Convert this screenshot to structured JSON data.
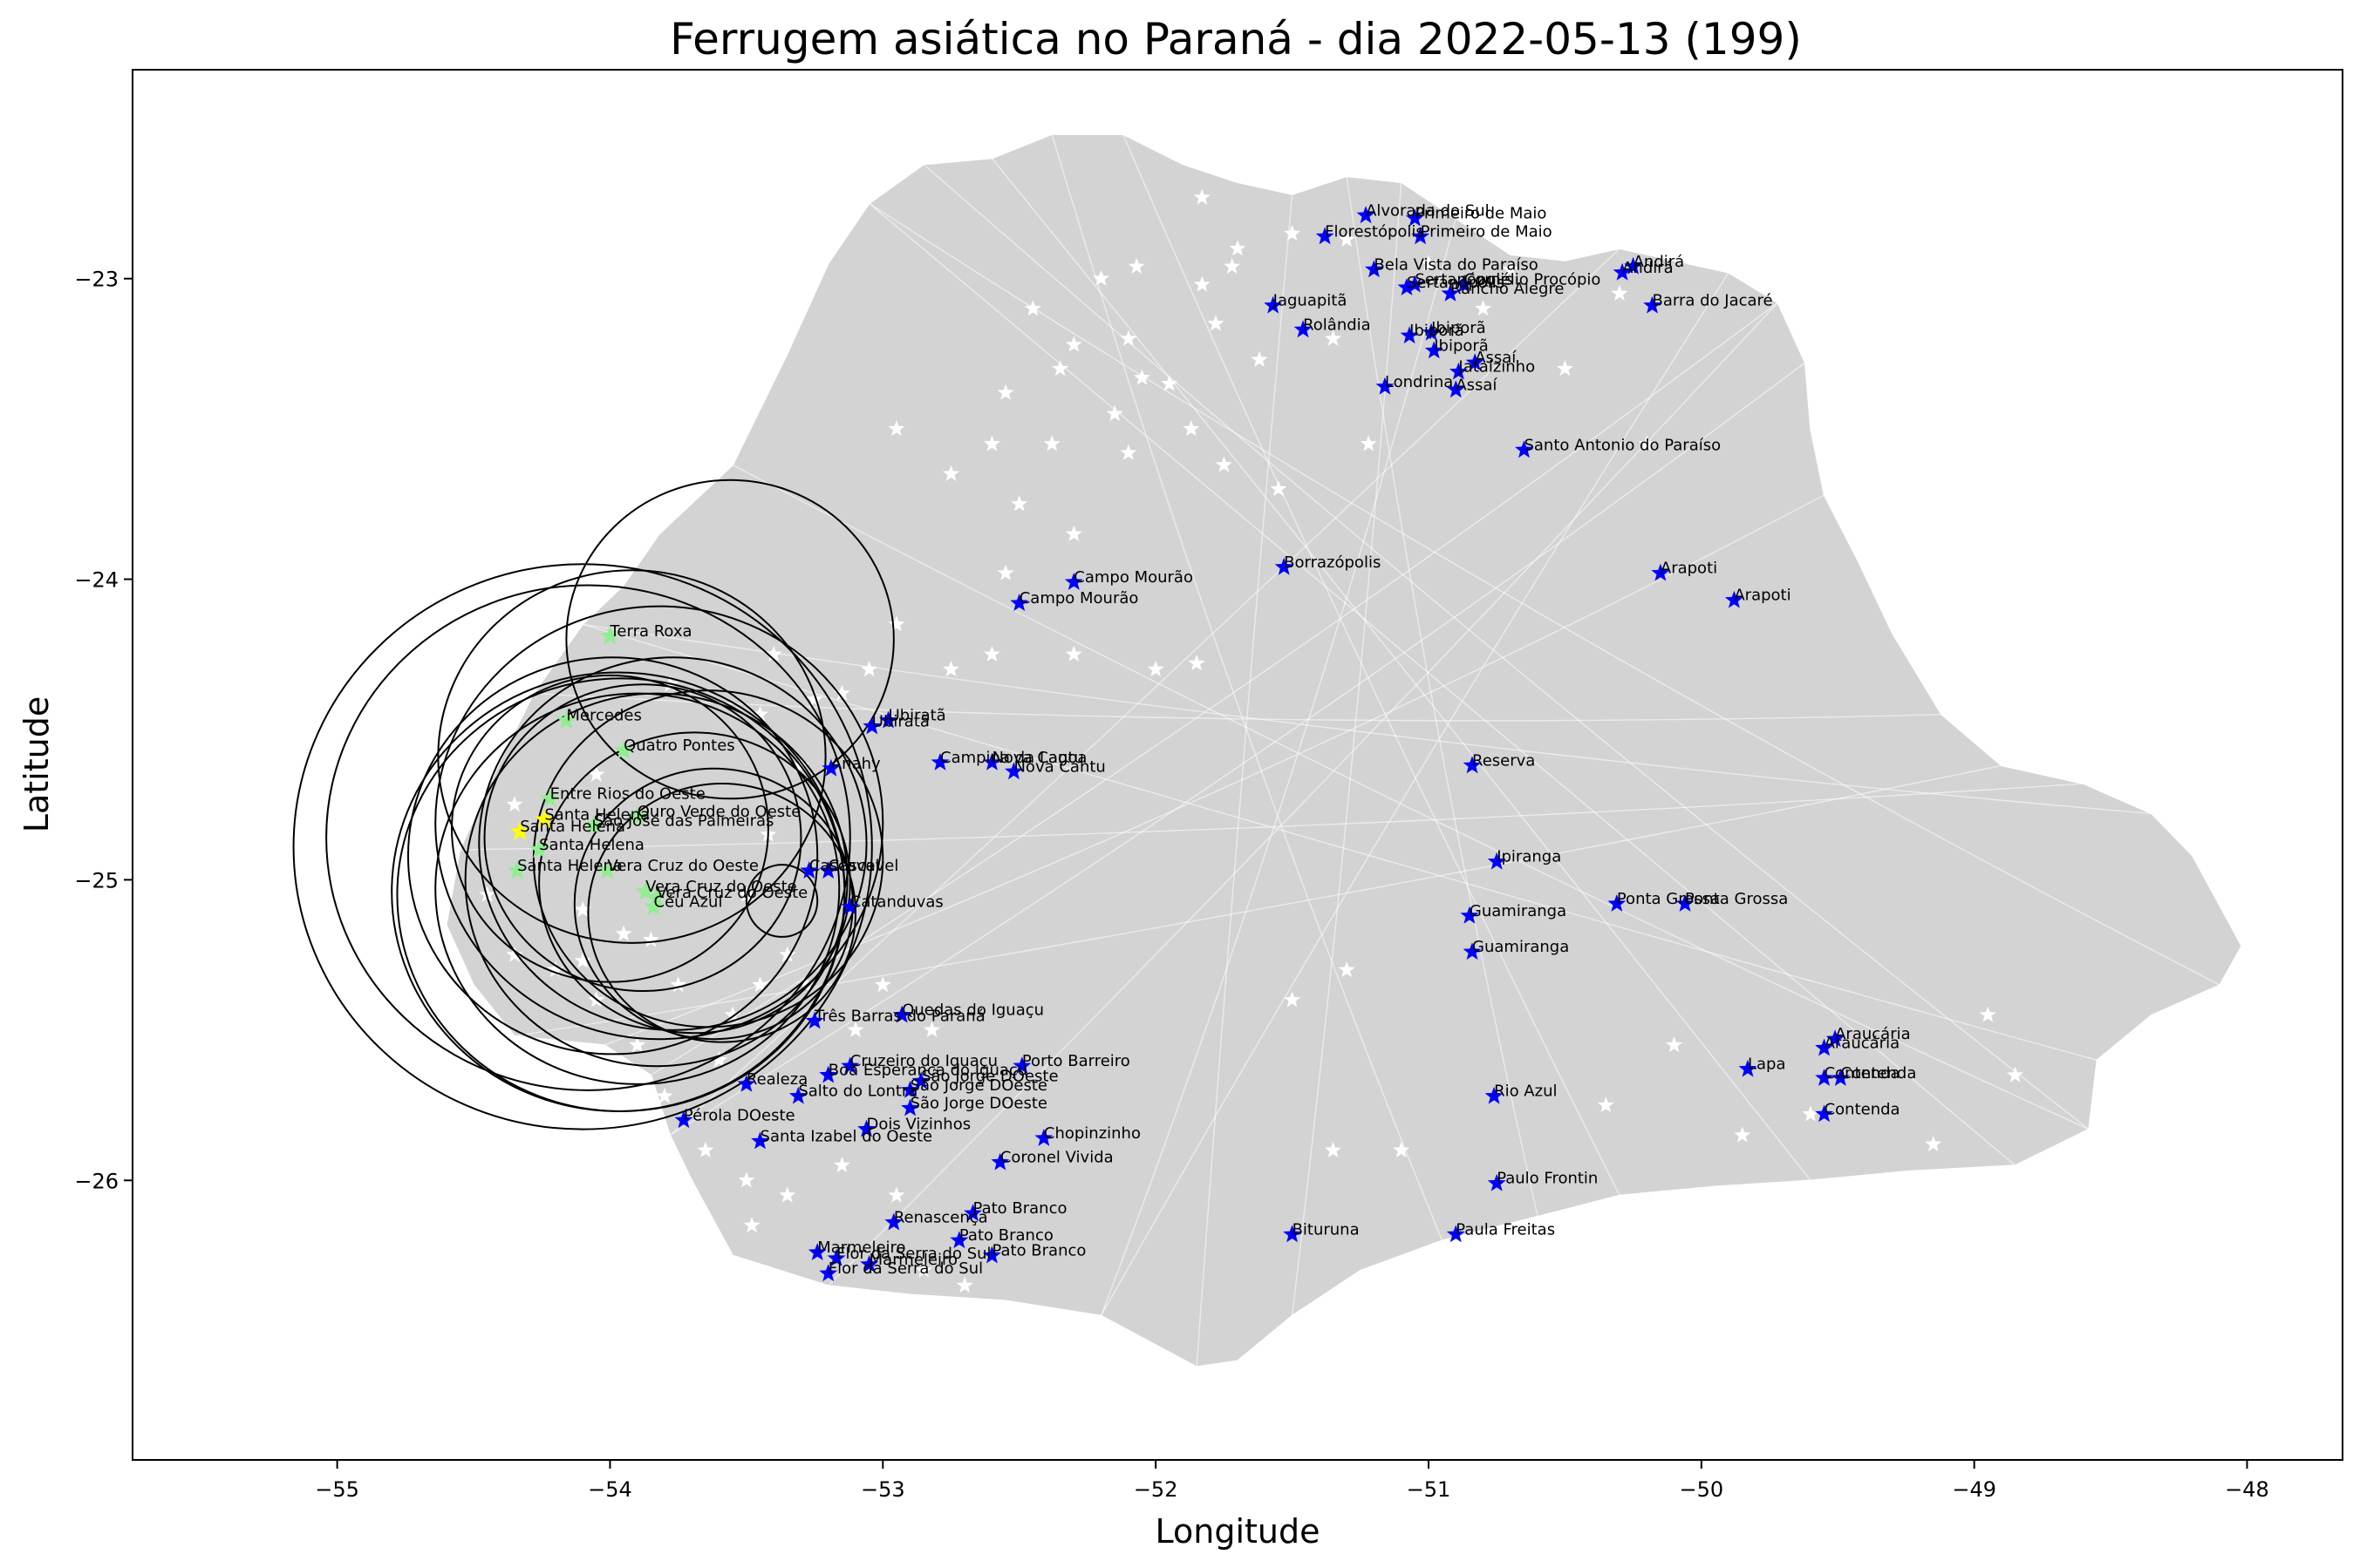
{
  "chart_data": {
    "type": "scatter",
    "title": "Ferrugem asiática no Paraná - dia 2022-05-13 (199)",
    "xlabel": "Longitude",
    "ylabel": "Latitude",
    "xlim": [
      -55.75,
      -47.65
    ],
    "ylim": [
      -26.93,
      -22.305
    ],
    "xticks": [
      -55,
      -54,
      -53,
      -52,
      -51,
      -50,
      -49,
      -48
    ],
    "xtick_labels": [
      "−55",
      "−54",
      "−53",
      "−52",
      "−51",
      "−50",
      "−49",
      "−48"
    ],
    "yticks": [
      -23,
      -24,
      -25,
      -26
    ],
    "ytick_labels": [
      "−23",
      "−24",
      "−25",
      "−26"
    ],
    "grid": false,
    "legend": "none",
    "colors": {
      "state_fill": "#d3d3d3",
      "boundaries": "#ffffff",
      "station_marker": "#0000ff",
      "infected_green": "#90ee90",
      "infected_yellow": "#ffff00",
      "circle_stroke": "#000000"
    },
    "state_outline": [
      [
        -52.12,
        -22.52
      ],
      [
        -51.9,
        -22.62
      ],
      [
        -51.7,
        -22.68
      ],
      [
        -51.5,
        -22.72
      ],
      [
        -51.3,
        -22.66
      ],
      [
        -51.1,
        -22.68
      ],
      [
        -50.9,
        -22.8
      ],
      [
        -50.7,
        -22.92
      ],
      [
        -50.5,
        -22.94
      ],
      [
        -50.3,
        -22.9
      ],
      [
        -50.1,
        -22.94
      ],
      [
        -49.9,
        -22.98
      ],
      [
        -49.72,
        -23.08
      ],
      [
        -49.62,
        -23.28
      ],
      [
        -49.6,
        -23.5
      ],
      [
        -49.55,
        -23.72
      ],
      [
        -49.42,
        -23.95
      ],
      [
        -49.3,
        -24.18
      ],
      [
        -49.12,
        -24.45
      ],
      [
        -48.9,
        -24.62
      ],
      [
        -48.6,
        -24.68
      ],
      [
        -48.35,
        -24.78
      ],
      [
        -48.2,
        -24.92
      ],
      [
        -48.02,
        -25.22
      ],
      [
        -48.1,
        -25.35
      ],
      [
        -48.35,
        -25.45
      ],
      [
        -48.55,
        -25.6
      ],
      [
        -48.58,
        -25.83
      ],
      [
        -48.85,
        -25.95
      ],
      [
        -49.25,
        -25.97
      ],
      [
        -49.6,
        -26.0
      ],
      [
        -49.95,
        -26.02
      ],
      [
        -50.3,
        -26.05
      ],
      [
        -50.6,
        -26.12
      ],
      [
        -50.95,
        -26.2
      ],
      [
        -51.25,
        -26.3
      ],
      [
        -51.5,
        -26.45
      ],
      [
        -51.7,
        -26.6
      ],
      [
        -51.85,
        -26.62
      ],
      [
        -52.2,
        -26.45
      ],
      [
        -52.55,
        -26.4
      ],
      [
        -52.9,
        -26.38
      ],
      [
        -53.2,
        -26.35
      ],
      [
        -53.55,
        -26.25
      ],
      [
        -53.7,
        -26.0
      ],
      [
        -53.78,
        -25.85
      ],
      [
        -53.85,
        -25.65
      ],
      [
        -54.02,
        -25.55
      ],
      [
        -54.35,
        -25.52
      ],
      [
        -54.5,
        -25.35
      ],
      [
        -54.6,
        -25.15
      ],
      [
        -54.55,
        -24.9
      ],
      [
        -54.4,
        -24.6
      ],
      [
        -54.28,
        -24.38
      ],
      [
        -54.1,
        -24.15
      ],
      [
        -53.95,
        -24.02
      ],
      [
        -53.82,
        -23.85
      ],
      [
        -53.55,
        -23.62
      ],
      [
        -53.35,
        -23.25
      ],
      [
        -53.2,
        -22.95
      ],
      [
        -53.05,
        -22.75
      ],
      [
        -52.85,
        -22.62
      ],
      [
        -52.6,
        -22.6
      ],
      [
        -52.38,
        -22.52
      ]
    ],
    "infected_points": [
      {
        "label": "Terra Roxa",
        "x": -54.0,
        "y": -24.19,
        "color": "#90ee90"
      },
      {
        "label": "Mercedes",
        "x": -54.16,
        "y": -24.47,
        "color": "#90ee90"
      },
      {
        "label": "Quatro Pontes",
        "x": -53.95,
        "y": -24.57,
        "color": "#90ee90"
      },
      {
        "label": "Entre Rios do Oeste",
        "x": -54.22,
        "y": -24.73,
        "color": "#90ee90"
      },
      {
        "label": "Santa Helena",
        "x": -54.24,
        "y": -24.8,
        "color": "#ffff00"
      },
      {
        "label": "Ouro Verde do Oeste",
        "x": -53.9,
        "y": -24.79,
        "color": "#90ee90"
      },
      {
        "label": "Santa Helena",
        "x": -54.33,
        "y": -24.84,
        "color": "#ffff00"
      },
      {
        "label": "São José das Palmeiras",
        "x": -54.06,
        "y": -24.82,
        "color": "#90ee90"
      },
      {
        "label": "Santa Helena",
        "x": -54.26,
        "y": -24.9,
        "color": "#90ee90"
      },
      {
        "label": "Santa Helena",
        "x": -54.34,
        "y": -24.97,
        "color": "#90ee90"
      },
      {
        "label": "Vera Cruz do Oeste",
        "x": -54.01,
        "y": -24.97,
        "color": "#90ee90"
      },
      {
        "label": "Vera Cruz do Oeste",
        "x": -53.87,
        "y": -25.04,
        "color": "#90ee90"
      },
      {
        "label": "Vera Cruz do Oeste",
        "x": -53.83,
        "y": -25.06,
        "color": "#90ee90"
      },
      {
        "label": "Céu Azul",
        "x": -53.84,
        "y": -25.09,
        "color": "#90ee90"
      }
    ],
    "circles": [
      {
        "cx": -53.99,
        "cy": -24.92,
        "r_lon": 0.75,
        "r_lat": 0.66
      },
      {
        "cx": -53.92,
        "cy": -24.59,
        "r_lon": 0.71,
        "r_lat": 0.62
      },
      {
        "cx": -53.82,
        "cy": -24.81,
        "r_lon": 0.82,
        "r_lat": 0.72
      },
      {
        "cx": -53.64,
        "cy": -24.93,
        "r_lon": 0.64,
        "r_lat": 0.56
      },
      {
        "cx": -53.88,
        "cy": -24.86,
        "r_lon": 0.58,
        "r_lat": 0.51
      },
      {
        "cx": -53.77,
        "cy": -24.88,
        "r_lon": 0.71,
        "r_lat": 0.62
      },
      {
        "cx": -53.69,
        "cy": -25.01,
        "r_lon": 0.57,
        "r_lat": 0.5
      },
      {
        "cx": -53.62,
        "cy": -25.08,
        "r_lon": 0.51,
        "r_lat": 0.45
      },
      {
        "cx": -53.59,
        "cy": -25.11,
        "r_lon": 0.49,
        "r_lat": 0.43
      },
      {
        "cx": -53.37,
        "cy": -25.07,
        "r_lon": 0.13,
        "r_lat": 0.12
      },
      {
        "cx": -53.56,
        "cy": -24.2,
        "r_lon": 0.6,
        "r_lat": 0.53
      },
      {
        "cx": -53.83,
        "cy": -25.0,
        "r_lon": 0.7,
        "r_lat": 0.62
      },
      {
        "cx": -53.9,
        "cy": -25.03,
        "r_lon": 0.74,
        "r_lat": 0.65
      },
      {
        "cx": -53.96,
        "cy": -25.05,
        "r_lon": 0.82,
        "r_lat": 0.72
      },
      {
        "cx": -54.0,
        "cy": -24.83,
        "r_lon": 0.58,
        "r_lat": 0.51
      },
      {
        "cx": -54.08,
        "cy": -24.86,
        "r_lon": 0.96,
        "r_lat": 0.84
      },
      {
        "cx": -54.1,
        "cy": -24.89,
        "r_lon": 1.06,
        "r_lat": 0.94
      },
      {
        "cx": -53.97,
        "cy": -25.04,
        "r_lon": 0.83,
        "r_lat": 0.73
      }
    ],
    "stations": [
      {
        "label": "Alvorada do Sul",
        "x": -51.23,
        "y": -22.79
      },
      {
        "label": "Primeiro de Maio",
        "x": -51.05,
        "y": -22.8
      },
      {
        "label": "Primeiro de Maio",
        "x": -51.03,
        "y": -22.86
      },
      {
        "label": "Florestópolis",
        "x": -51.38,
        "y": -22.86
      },
      {
        "label": "Bela Vista do Paraíso",
        "x": -51.2,
        "y": -22.97
      },
      {
        "label": "Sertanópolis",
        "x": -51.05,
        "y": -23.02
      },
      {
        "label": "Sertanópolis",
        "x": -51.08,
        "y": -23.03
      },
      {
        "label": "Rancho Alegre",
        "x": -50.92,
        "y": -23.05
      },
      {
        "label": "Cornélio Procópio",
        "x": -50.87,
        "y": -23.02
      },
      {
        "label": "Jaguapitã",
        "x": -51.57,
        "y": -23.09
      },
      {
        "label": "Rolândia",
        "x": -51.46,
        "y": -23.17
      },
      {
        "label": "Ibiporã",
        "x": -51.07,
        "y": -23.19
      },
      {
        "label": "Ibiporã",
        "x": -50.99,
        "y": -23.18
      },
      {
        "label": "Ibiporã",
        "x": -50.98,
        "y": -23.24
      },
      {
        "label": "Jataizinho",
        "x": -50.89,
        "y": -23.31
      },
      {
        "label": "Assaí",
        "x": -50.83,
        "y": -23.28
      },
      {
        "label": "Londrina",
        "x": -51.16,
        "y": -23.36
      },
      {
        "label": "Assaí",
        "x": -50.9,
        "y": -23.37
      },
      {
        "label": "Andirá",
        "x": -50.25,
        "y": -22.96
      },
      {
        "label": "Andirá",
        "x": -50.29,
        "y": -22.98
      },
      {
        "label": "Barra do Jacaré",
        "x": -50.18,
        "y": -23.09
      },
      {
        "label": "Santo Antonio do Paraíso",
        "x": -50.65,
        "y": -23.57
      },
      {
        "label": "Borrazópolis",
        "x": -51.53,
        "y": -23.96
      },
      {
        "label": "Campo Mourão",
        "x": -52.3,
        "y": -24.01
      },
      {
        "label": "Campo Mourão",
        "x": -52.5,
        "y": -24.08
      },
      {
        "label": "Arapoti",
        "x": -50.15,
        "y": -23.98
      },
      {
        "label": "Arapoti",
        "x": -49.88,
        "y": -24.07
      },
      {
        "label": "Ubiratã",
        "x": -52.98,
        "y": -24.47
      },
      {
        "label": "Ubiratã",
        "x": -53.04,
        "y": -24.49
      },
      {
        "label": "Campina da Lagoa",
        "x": -52.79,
        "y": -24.61
      },
      {
        "label": "Nova Cantu",
        "x": -52.6,
        "y": -24.61
      },
      {
        "label": "Nova Cantu",
        "x": -52.52,
        "y": -24.64
      },
      {
        "label": "Anahy",
        "x": -53.19,
        "y": -24.63
      },
      {
        "label": "Reserva",
        "x": -50.84,
        "y": -24.62
      },
      {
        "label": "Cascavel",
        "x": -53.2,
        "y": -24.97
      },
      {
        "label": "Cascavel",
        "x": -53.27,
        "y": -24.97
      },
      {
        "label": "Catanduvas",
        "x": -53.12,
        "y": -25.09
      },
      {
        "label": "Ipiranga",
        "x": -50.75,
        "y": -24.94
      },
      {
        "label": "Guamiranga",
        "x": -50.85,
        "y": -25.12
      },
      {
        "label": "Guamiranga",
        "x": -50.84,
        "y": -25.24
      },
      {
        "label": "Ponta Grossa",
        "x": -50.31,
        "y": -25.08
      },
      {
        "label": "Ponta Grossa",
        "x": -50.06,
        "y": -25.08
      },
      {
        "label": "Três Barras do Paraná",
        "x": -53.25,
        "y": -25.47
      },
      {
        "label": "Quedas do Iguaçu",
        "x": -52.93,
        "y": -25.45
      },
      {
        "label": "Porto Barreiro",
        "x": -52.49,
        "y": -25.62
      },
      {
        "label": "Boa Esperança do Iguaçu",
        "x": -53.2,
        "y": -25.65
      },
      {
        "label": "Cruzeiro do Iguaçu",
        "x": -53.12,
        "y": -25.62
      },
      {
        "label": "São Jorge DOeste",
        "x": -52.86,
        "y": -25.67
      },
      {
        "label": "São Jorge DOeste",
        "x": -52.9,
        "y": -25.7
      },
      {
        "label": "Realeza",
        "x": -53.5,
        "y": -25.68
      },
      {
        "label": "Salto do Lontra",
        "x": -53.31,
        "y": -25.72
      },
      {
        "label": "São Jorge DOeste",
        "x": -52.9,
        "y": -25.76
      },
      {
        "label": "Pérola DOeste",
        "x": -53.73,
        "y": -25.8
      },
      {
        "label": "Dois Vizinhos",
        "x": -53.06,
        "y": -25.83
      },
      {
        "label": "Santa Izabel do Oeste",
        "x": -53.45,
        "y": -25.87
      },
      {
        "label": "Chopinzinho",
        "x": -52.41,
        "y": -25.86
      },
      {
        "label": "Coronel Vivida",
        "x": -52.57,
        "y": -25.94
      },
      {
        "label": "Pato Branco",
        "x": -52.67,
        "y": -26.11
      },
      {
        "label": "Renascença",
        "x": -52.96,
        "y": -26.14
      },
      {
        "label": "Pato Branco",
        "x": -52.72,
        "y": -26.2
      },
      {
        "label": "Pato Branco",
        "x": -52.6,
        "y": -26.25
      },
      {
        "label": "Marmeleiro",
        "x": -53.24,
        "y": -26.24
      },
      {
        "label": "Flor da Serra do Sul",
        "x": -53.17,
        "y": -26.26
      },
      {
        "label": "Marmeleiro",
        "x": -53.05,
        "y": -26.28
      },
      {
        "label": "Flor da Serra do Sul",
        "x": -53.2,
        "y": -26.31
      },
      {
        "label": "Rio Azul",
        "x": -50.76,
        "y": -25.72
      },
      {
        "label": "Paulo Frontin",
        "x": -50.75,
        "y": -26.01
      },
      {
        "label": "Bituruna",
        "x": -51.5,
        "y": -26.18
      },
      {
        "label": "Paula Freitas",
        "x": -50.9,
        "y": -26.18
      },
      {
        "label": "Lapa",
        "x": -49.83,
        "y": -25.63
      },
      {
        "label": "Araucária",
        "x": -49.51,
        "y": -25.53
      },
      {
        "label": "Araucária",
        "x": -49.55,
        "y": -25.56
      },
      {
        "label": "Contenda",
        "x": -49.55,
        "y": -25.66
      },
      {
        "label": "Contenda",
        "x": -49.49,
        "y": -25.66
      },
      {
        "label": "Contenda",
        "x": -49.55,
        "y": -25.78
      }
    ],
    "background_stars": [
      [
        -51.83,
        -22.73
      ],
      [
        -51.72,
        -22.96
      ],
      [
        -51.5,
        -22.85
      ],
      [
        -51.3,
        -22.87
      ],
      [
        -51.7,
        -22.9
      ],
      [
        -52.07,
        -22.96
      ],
      [
        -51.83,
        -23.02
      ],
      [
        -52.2,
        -23.0
      ],
      [
        -52.45,
        -23.1
      ],
      [
        -52.3,
        -23.22
      ],
      [
        -52.1,
        -23.2
      ],
      [
        -52.35,
        -23.3
      ],
      [
        -52.05,
        -23.33
      ],
      [
        -51.78,
        -23.15
      ],
      [
        -52.55,
        -23.38
      ],
      [
        -52.15,
        -23.45
      ],
      [
        -51.95,
        -23.35
      ],
      [
        -51.62,
        -23.27
      ],
      [
        -51.87,
        -23.5
      ],
      [
        -52.1,
        -23.58
      ],
      [
        -52.38,
        -23.55
      ],
      [
        -52.6,
        -23.55
      ],
      [
        -52.75,
        -23.65
      ],
      [
        -52.95,
        -23.5
      ],
      [
        -52.5,
        -23.75
      ],
      [
        -51.75,
        -23.62
      ],
      [
        -52.3,
        -23.85
      ],
      [
        -51.55,
        -23.7
      ],
      [
        -52.55,
        -23.98
      ],
      [
        -52.95,
        -24.15
      ],
      [
        -53.05,
        -24.3
      ],
      [
        -52.75,
        -24.3
      ],
      [
        -52.6,
        -24.25
      ],
      [
        -52.3,
        -24.25
      ],
      [
        -52.0,
        -24.3
      ],
      [
        -51.85,
        -24.28
      ],
      [
        -53.4,
        -24.25
      ],
      [
        -53.25,
        -24.4
      ],
      [
        -53.15,
        -24.38
      ],
      [
        -53.45,
        -24.45
      ],
      [
        -53.3,
        -24.62
      ],
      [
        -53.42,
        -24.85
      ],
      [
        -53.5,
        -25.05
      ],
      [
        -53.35,
        -25.25
      ],
      [
        -53.45,
        -25.35
      ],
      [
        -53.55,
        -25.45
      ],
      [
        -53.6,
        -25.6
      ],
      [
        -53.8,
        -25.72
      ],
      [
        -53.9,
        -25.55
      ],
      [
        -54.05,
        -25.4
      ],
      [
        -54.2,
        -25.3
      ],
      [
        -54.35,
        -25.25
      ],
      [
        -54.1,
        -25.1
      ],
      [
        -53.85,
        -25.2
      ],
      [
        -53.75,
        -25.35
      ],
      [
        -53.28,
        -25.35
      ],
      [
        -53.1,
        -25.5
      ],
      [
        -53.0,
        -25.35
      ],
      [
        -52.82,
        -25.5
      ],
      [
        -53.65,
        -25.9
      ],
      [
        -53.5,
        -26.0
      ],
      [
        -53.35,
        -26.05
      ],
      [
        -53.15,
        -25.95
      ],
      [
        -52.95,
        -26.05
      ],
      [
        -53.48,
        -26.15
      ],
      [
        -52.7,
        -26.35
      ],
      [
        -52.85,
        -26.3
      ],
      [
        -51.3,
        -25.3
      ],
      [
        -51.5,
        -25.4
      ],
      [
        -51.35,
        -25.9
      ],
      [
        -51.1,
        -25.9
      ],
      [
        -50.35,
        -25.75
      ],
      [
        -50.1,
        -25.55
      ],
      [
        -49.6,
        -25.78
      ],
      [
        -49.85,
        -25.85
      ],
      [
        -49.15,
        -25.88
      ],
      [
        -48.85,
        -25.65
      ],
      [
        -48.95,
        -25.45
      ],
      [
        -50.3,
        -23.05
      ],
      [
        -50.5,
        -23.3
      ],
      [
        -50.2,
        -23.55
      ],
      [
        -50.8,
        -23.1
      ],
      [
        -51.22,
        -23.55
      ],
      [
        -51.35,
        -23.2
      ],
      [
        -51.0,
        -22.95
      ],
      [
        -50.7,
        -22.97
      ],
      [
        -53.78,
        -24.35
      ],
      [
        -54.35,
        -24.75
      ],
      [
        -54.45,
        -25.05
      ],
      [
        -54.05,
        -24.65
      ],
      [
        -53.95,
        -25.18
      ],
      [
        -54.1,
        -25.27
      ]
    ]
  }
}
